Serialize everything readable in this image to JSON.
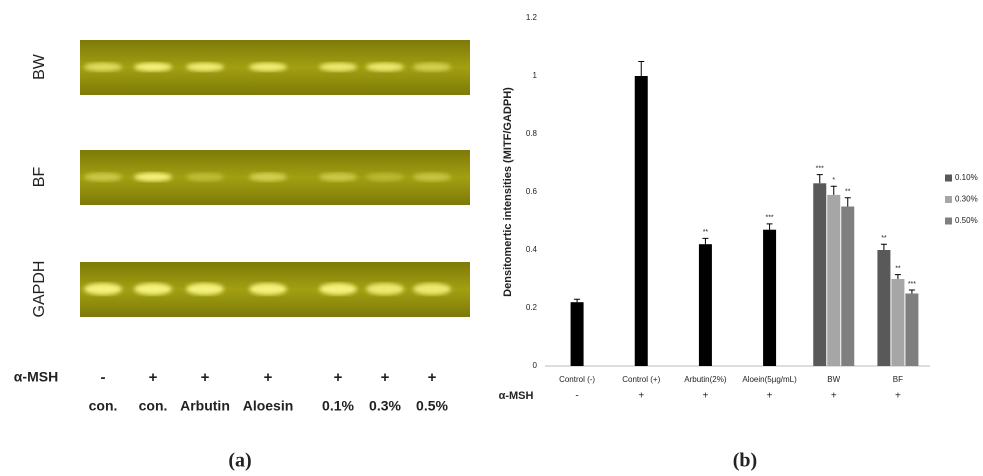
{
  "panel_a": {
    "rows": [
      "BW",
      "BF",
      "GAPDH"
    ],
    "treatment_label": "α-MSH",
    "signs": [
      "-",
      "+",
      "+",
      "+",
      "+",
      "+",
      "+"
    ],
    "lanes": [
      "con.",
      "con.",
      "Arbutin",
      "Aloesin",
      "0.1%",
      "0.3%",
      "0.5%"
    ],
    "panel_label": "(a)"
  },
  "chart_data": {
    "type": "bar",
    "y_label": "Densitomertic intensities (MITF/GADPH)",
    "categories": [
      "Control (-)",
      "Control (+)",
      "Arbutin(2%)",
      "Aloein(5µg/mL)",
      "BW",
      "BF"
    ],
    "values": [
      0.22,
      1.0,
      0.42,
      0.47,
      null,
      null
    ],
    "errors": [
      0.01,
      0.05,
      0.02,
      0.02,
      null,
      null
    ],
    "annotations": [
      null,
      null,
      "**",
      "***",
      null,
      null
    ],
    "color": "#000000",
    "series": [
      {
        "name": "0.10%",
        "color": "#595959",
        "values": [
          null,
          null,
          null,
          null,
          0.63,
          0.4
        ],
        "errors": [
          null,
          null,
          null,
          null,
          0.03,
          0.02
        ],
        "annotations": [
          null,
          null,
          null,
          null,
          "***",
          "**"
        ]
      },
      {
        "name": "0.30%",
        "color": "#a6a6a6",
        "values": [
          null,
          null,
          null,
          null,
          0.59,
          0.3
        ],
        "errors": [
          null,
          null,
          null,
          null,
          0.03,
          0.015
        ],
        "annotations": [
          null,
          null,
          null,
          null,
          "*",
          "**"
        ]
      },
      {
        "name": "0.50%",
        "color": "#7f7f7f",
        "values": [
          null,
          null,
          null,
          null,
          0.55,
          0.25
        ],
        "errors": [
          null,
          null,
          null,
          null,
          0.03,
          0.012
        ],
        "annotations": [
          null,
          null,
          null,
          null,
          "**",
          "***"
        ]
      }
    ],
    "ylim": [
      0,
      1.2
    ],
    "yticks": [
      0,
      0.2,
      0.4,
      0.6,
      0.8,
      1,
      1.2
    ],
    "grid": false,
    "legend": "right",
    "treatment_label": "α-MSH",
    "signs": [
      "-",
      "+",
      "+",
      "+",
      "+",
      "+"
    ],
    "panel_label": "(b)"
  }
}
